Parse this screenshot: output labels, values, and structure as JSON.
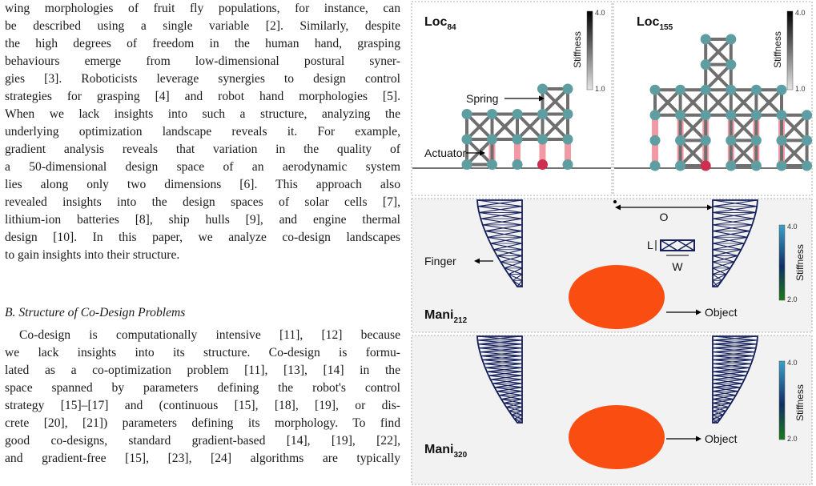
{
  "paper": {
    "lines": [
      "wing morphologies of fruit fly populations, for instance, can",
      "be described using a single variable [2]. Similarly, despite",
      "the high degrees of freedom in the human hand, grasping",
      "behaviours emerge from low-dimensional postural syner-",
      "gies [3]. Roboticists leverage synergies to design control",
      "strategies for grasping [4] and robot hand morphologies [5].",
      "When we lack insights into such a structure, analyzing the",
      "underlying optimization landscape reveals it. For example,",
      "gradient analysis reveals that variation in the quality of",
      "a 50-dimensional design space of an aerodynamic system",
      "lies along only two dimensions [6]. This approach also",
      "revealed insights into the design spaces of solar cells [7],",
      "lithium-ion batteries [8], ship hulls [9], and engine thermal",
      "design [10]. In this paper, we analyze co-design landscapes",
      "to gain insights into their structure.",
      "B. Structure of Co-Design Problems",
      "Co-design is computationally intensive [11], [12] because",
      "we lack insights into its structure. Co-design is formu-",
      "lated as a co-optimization problem [11], [13], [14] in the",
      "space spanned by parameters defining the robot's control",
      "strategy [15]–[17] and (continuous [15], [18], [19], or dis-",
      "crete [20], [21]) parameters defining its morphology. To find",
      "good co-designs, standard gradient-based [14], [19], [22],",
      "and gradient-free [15], [23], [24] algorithms are typically"
    ]
  },
  "figure": {
    "loc84": {
      "title": "Loc",
      "sub": "84",
      "spring": "Spring",
      "actuator": "Actuator"
    },
    "loc155": {
      "title": "Loc",
      "sub": "155"
    },
    "mani212": {
      "title": "Mani",
      "sub": "212",
      "finger": "Finger",
      "object": "Object",
      "O": "O",
      "L": "L",
      "W": "W"
    },
    "mani320": {
      "title": "Mani",
      "sub": "320",
      "object": "Object"
    },
    "colorbar": {
      "label": "Stiffness",
      "loc_max": "4.0",
      "loc_min": "1.0",
      "mani_max": "4.0",
      "mani_min": "2.0"
    },
    "colors": {
      "node": "#5f9ea0",
      "beam": "#6f6f6f",
      "actuator": "#f29aa3",
      "active_node": "#cc2f4f",
      "finger": "#15205c",
      "object": "#fa4d12"
    }
  }
}
